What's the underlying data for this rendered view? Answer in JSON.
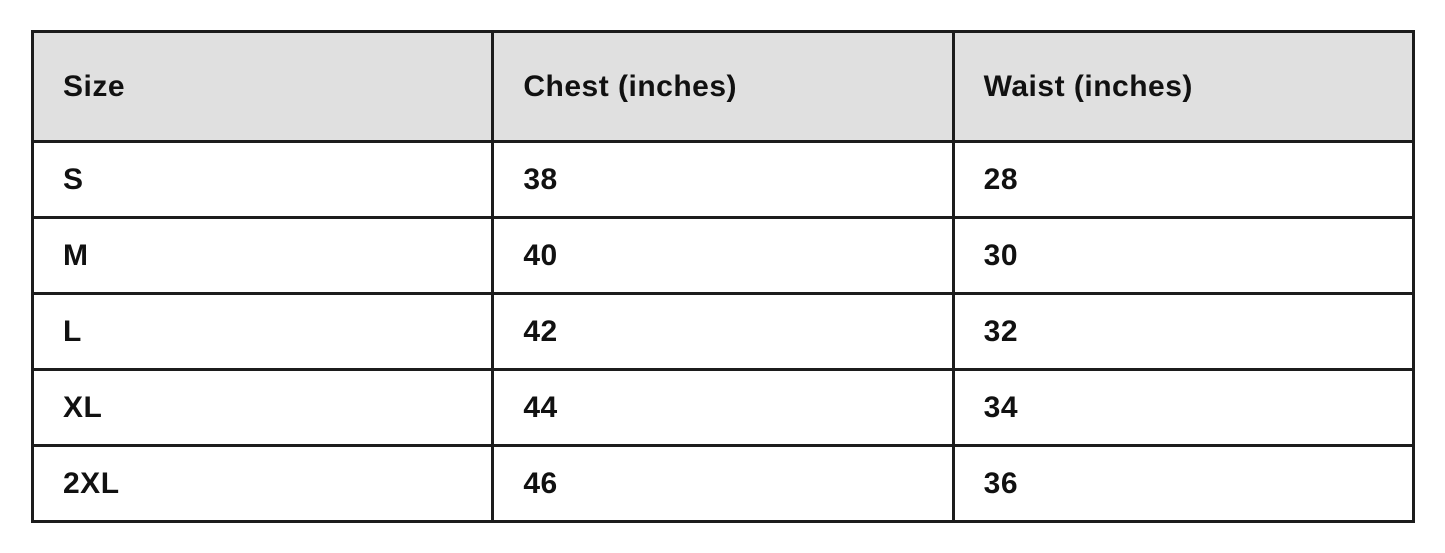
{
  "chart_data": {
    "type": "table",
    "columns": [
      "Size",
      "Chest (inches)",
      "Waist (inches)"
    ],
    "rows": [
      {
        "size": "S",
        "chest": "38",
        "waist": "28"
      },
      {
        "size": "M",
        "chest": "40",
        "waist": "30"
      },
      {
        "size": "L",
        "chest": "42",
        "waist": "32"
      },
      {
        "size": "XL",
        "chest": "44",
        "waist": "34"
      },
      {
        "size": "2XL",
        "chest": "46",
        "waist": "36"
      }
    ]
  },
  "colors": {
    "page_bg": "#ffffff",
    "header_bg": "#e0e0e0",
    "row_bg": "#ffffff",
    "border": "#1c1c1c",
    "text": "#111111"
  }
}
